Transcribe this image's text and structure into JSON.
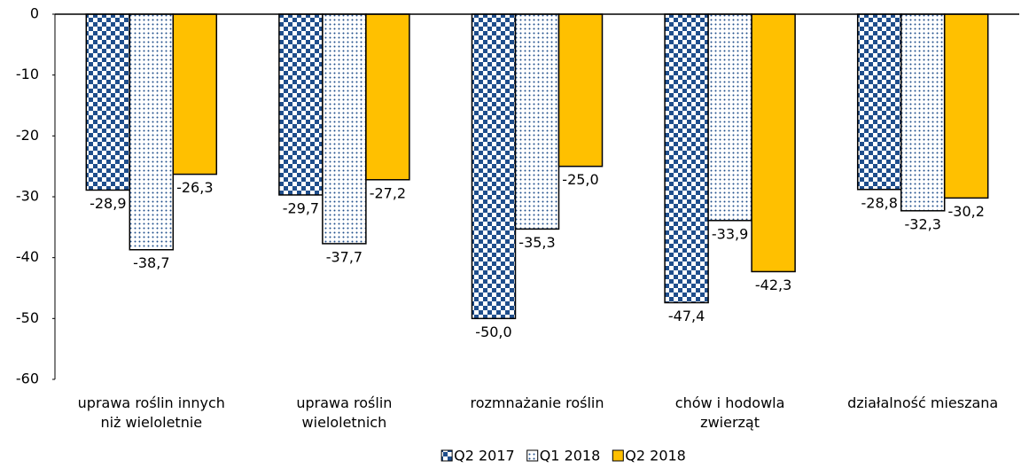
{
  "chart_data": {
    "type": "bar",
    "categories": [
      "uprawa roślin innych niż wieloletnie",
      "uprawa roślin wieloletnich",
      "rozmnażanie roślin",
      "chów i hodowla zwierząt",
      "działalność mieszana"
    ],
    "series": [
      {
        "name": "Q2 2017",
        "color": "#1f4e8c",
        "pattern": "checker",
        "values": [
          -28.9,
          -29.7,
          -50.0,
          -47.4,
          -28.8
        ],
        "value_labels": [
          "-28,9",
          "-29,7",
          "-50,0",
          "-47,4",
          "-28,8"
        ]
      },
      {
        "name": "Q1 2018",
        "color": "#1f4e8c",
        "pattern": "dots",
        "values": [
          -38.7,
          -37.7,
          -35.3,
          -33.9,
          -32.3
        ],
        "value_labels": [
          "-38,7",
          "-37,7",
          "-35,3",
          "-33,9",
          "-32,3"
        ]
      },
      {
        "name": "Q2 2018",
        "color": "#ffc000",
        "pattern": "solid",
        "values": [
          -26.3,
          -27.2,
          -25.0,
          -42.3,
          -30.2
        ],
        "value_labels": [
          "-26,3",
          "-27,2",
          "-25,0",
          "-42,3",
          "-30,2"
        ]
      }
    ],
    "ylim": [
      -60,
      0
    ],
    "yticks": [
      0,
      -10,
      -20,
      -30,
      -40,
      -50,
      -60
    ],
    "grid": false,
    "legend": "bottom"
  }
}
